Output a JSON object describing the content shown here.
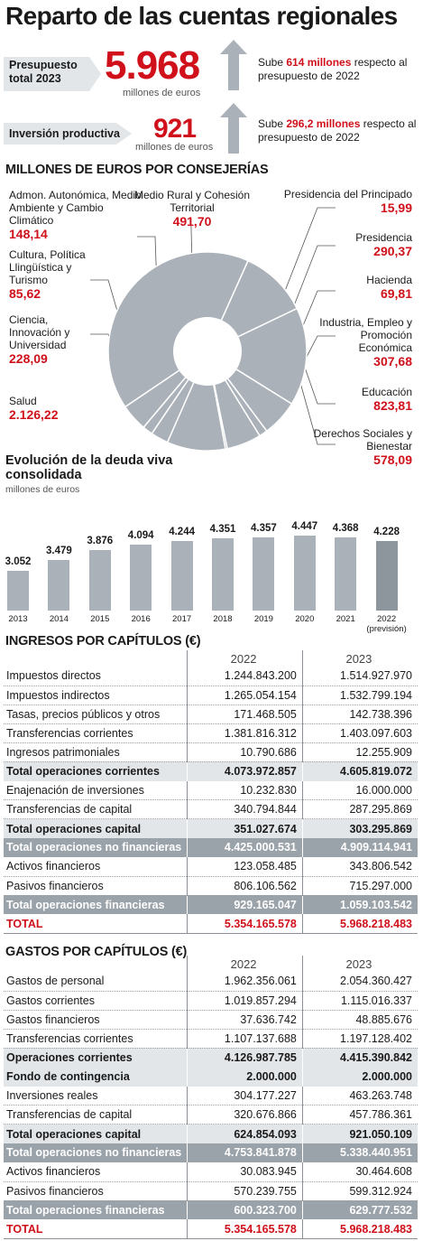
{
  "title": "Reparto de las cuentas regionales",
  "summary": {
    "presupuesto": {
      "label": "Presupuesto total 2023",
      "value": "5.968",
      "unit": "millones de euros",
      "note_pre": "Sube ",
      "note_amount": "614 millones",
      "note_post": " respecto al presupuesto de 2022"
    },
    "inversion": {
      "label": "Inversión productiva",
      "value": "921",
      "unit": "millones de euros",
      "note_pre": "Sube ",
      "note_amount": "296,2 millones",
      "note_post": " respecto al presupuesto de 2022"
    }
  },
  "chart_data": [
    {
      "type": "pie",
      "title": "MILLONES DE EUROS POR CONSEJERÍAS",
      "donut": true,
      "color": "#aab1b8",
      "categories": [
        "Salud",
        "Derechos Sociales y Bienestar",
        "Educación",
        "Industria, Empleo y Promoción Económica",
        "Hacienda",
        "Presidencia",
        "Presidencia del Principado",
        "Medio Rural y Cohesión Territorial",
        "Admon. Autonómica, Medio Ambiente y Cambio Climático",
        "Cultura, Política Llingüística y Turismo",
        "Ciencia, Innovación y Universidad"
      ],
      "values": [
        2126.22,
        578.09,
        823.81,
        307.68,
        69.81,
        290.37,
        15.99,
        491.7,
        148.14,
        85.62,
        228.09
      ],
      "display_values": [
        "2.126,22",
        "578,09",
        "823,81",
        "307,68",
        "69,81",
        "290,37",
        "15,99",
        "491,70",
        "148,14",
        "85,62",
        "228,09"
      ]
    },
    {
      "type": "bar",
      "title": "Evolución de la deuda viva consolidada",
      "ylabel": "millones de euros",
      "categories": [
        "2013",
        "2014",
        "2015",
        "2016",
        "2017",
        "2018",
        "2019",
        "2020",
        "2021",
        "2022"
      ],
      "category_notes": [
        "",
        "",
        "",
        "",
        "",
        "",
        "",
        "",
        "",
        "(previsión)"
      ],
      "values": [
        3052,
        3479,
        3876,
        4094,
        4244,
        4351,
        4357,
        4447,
        4368,
        4228
      ],
      "display_values": [
        "3.052",
        "3.479",
        "3.876",
        "4.094",
        "4.244",
        "4.351",
        "4.357",
        "4.447",
        "4.368",
        "4.228"
      ],
      "ylim": [
        0,
        4447
      ],
      "colors": {
        "bar": "#aab1b8",
        "forecast": "#8d959d"
      }
    }
  ],
  "ingresos": {
    "title": "INGRESOS POR CAPÍTULOS (€)",
    "years": [
      "2022",
      "2023"
    ],
    "rows": [
      {
        "label": "Impuestos directos",
        "v2022": "1.244.843.200",
        "v2023": "1.514.927.970",
        "style": "row"
      },
      {
        "label": "Impuestos indirectos",
        "v2022": "1.265.054.154",
        "v2023": "1.532.799.194",
        "style": "row"
      },
      {
        "label": "Tasas, precios públicos y otros",
        "v2022": "171.468.505",
        "v2023": "142.738.396",
        "style": "row"
      },
      {
        "label": "Transferencias corrientes",
        "v2022": "1.381.816.312",
        "v2023": "1.403.097.603",
        "style": "row"
      },
      {
        "label": "Ingresos patrimoniales",
        "v2022": "10.790.686",
        "v2023": "12.255.909",
        "style": "row"
      },
      {
        "label": "Total operaciones corrientes",
        "v2022": "4.073.972.857",
        "v2023": "4.605.819.072",
        "style": "tot"
      },
      {
        "label": "Enajenación de inversiones",
        "v2022": "10.232.830",
        "v2023": "16.000.000",
        "style": "row"
      },
      {
        "label": "Transferencias de capital",
        "v2022": "340.794.844",
        "v2023": "287.295.869",
        "style": "row"
      },
      {
        "label": "Total operaciones capital",
        "v2022": "351.027.674",
        "v2023": "303.295.869",
        "style": "tot"
      },
      {
        "label": "Total operaciones no financieras",
        "v2022": "4.425.000.531",
        "v2023": "4.909.114.941",
        "style": "dark"
      },
      {
        "label": "Activos financieros",
        "v2022": "123.058.485",
        "v2023": "343.806.542",
        "style": "row"
      },
      {
        "label": "Pasivos financieros",
        "v2022": "806.106.562",
        "v2023": "715.297.000",
        "style": "row"
      },
      {
        "label": "Total operaciones financieras",
        "v2022": "929.165.047",
        "v2023": "1.059.103.542",
        "style": "dark"
      },
      {
        "label": "TOTAL",
        "v2022": "5.354.165.578",
        "v2023": "5.968.218.483",
        "style": "grand"
      }
    ]
  },
  "gastos": {
    "title": "GASTOS POR CAPÍTULOS (€)",
    "years": [
      "2022",
      "2023"
    ],
    "rows": [
      {
        "label": "Gastos de personal",
        "v2022": "1.962.356.061",
        "v2023": "2.054.360.427",
        "style": "row"
      },
      {
        "label": "Gastos corrientes",
        "v2022": "1.019.857.294",
        "v2023": "1.115.016.337",
        "style": "row"
      },
      {
        "label": "Gastos financieros",
        "v2022": "37.636.742",
        "v2023": "48.885.676",
        "style": "row"
      },
      {
        "label": "Transferencias corrientes",
        "v2022": "1.107.137.688",
        "v2023": "1.197.128.402",
        "style": "row"
      },
      {
        "label": "Operaciones corrientes",
        "v2022": "4.126.987.785",
        "v2023": "4.415.390.842",
        "style": "tot"
      },
      {
        "label": "Fondo de contingencia",
        "v2022": "2.000.000",
        "v2023": "2.000.000",
        "style": "tot"
      },
      {
        "label": "Inversiones reales",
        "v2022": "304.177.227",
        "v2023": "463.263.748",
        "style": "row"
      },
      {
        "label": "Transferencias de capital",
        "v2022": "320.676.866",
        "v2023": "457.786.361",
        "style": "row"
      },
      {
        "label": "Total operaciones capital",
        "v2022": "624.854.093",
        "v2023": "921.050.109",
        "style": "tot"
      },
      {
        "label": "Total operaciones no financieras",
        "v2022": "4.753.841.878",
        "v2023": "5.338.440.951",
        "style": "dark"
      },
      {
        "label": "Activos financieros",
        "v2022": "30.083.945",
        "v2023": "30.464.608",
        "style": "row"
      },
      {
        "label": "Pasivos financieros",
        "v2022": "570.239.755",
        "v2023": "599.312.924",
        "style": "row"
      },
      {
        "label": "Total operaciones financieras",
        "v2022": "600.323.700",
        "v2023": "629.777.532",
        "style": "dark"
      },
      {
        "label": "TOTAL",
        "v2022": "5.354.165.578",
        "v2023": "5.968.218.483",
        "style": "grand"
      }
    ]
  }
}
